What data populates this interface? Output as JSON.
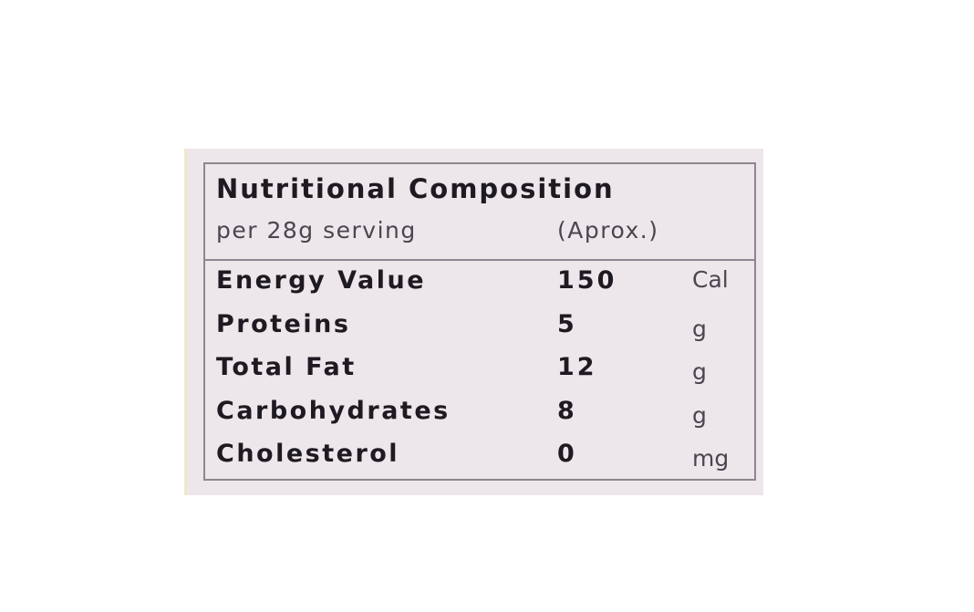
{
  "label": {
    "title": "Nutritional Composition",
    "serving": "per 28g serving",
    "approx": "(Aprox.)",
    "rows": [
      {
        "name": "Energy Value",
        "value": "150",
        "unit": "Cal"
      },
      {
        "name": "Proteins",
        "value": "5",
        "unit": "g"
      },
      {
        "name": "Total Fat",
        "value": "12",
        "unit": "g"
      },
      {
        "name": "Carbohydrates",
        "value": "8",
        "unit": "g"
      },
      {
        "name": "Cholesterol",
        "value": "0",
        "unit": "mg"
      }
    ],
    "colors": {
      "background": "#ede6ea",
      "text": "#1e1a22",
      "border": "#8c8690"
    }
  }
}
